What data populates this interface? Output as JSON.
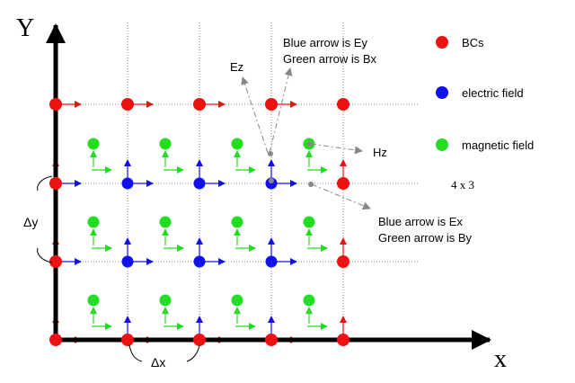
{
  "axes": {
    "y_label": "Y",
    "x_label": "x"
  },
  "legend": [
    {
      "label": "BCs",
      "color": "#ee1111"
    },
    {
      "label": "electric field",
      "color": "#1111ee"
    },
    {
      "label": "magnetic field",
      "color": "#22dd22"
    }
  ],
  "grid_note": "4 x 3",
  "labels": {
    "ez": "Ez",
    "hz": "Hz",
    "ey_note_1": "Blue arrow is Ey",
    "ey_note_2": "Green arrow is Bx",
    "ex_note_1": "Blue arrow is Ex",
    "ex_note_2": "Green arrow is By",
    "delta_y": "Δy",
    "delta_x": "Δx"
  },
  "colors": {
    "bc": "#ee1111",
    "electric": "#1111ee",
    "magnetic": "#22dd22",
    "axis": "#000000",
    "grid": "#888888",
    "annotation": "#888888"
  }
}
